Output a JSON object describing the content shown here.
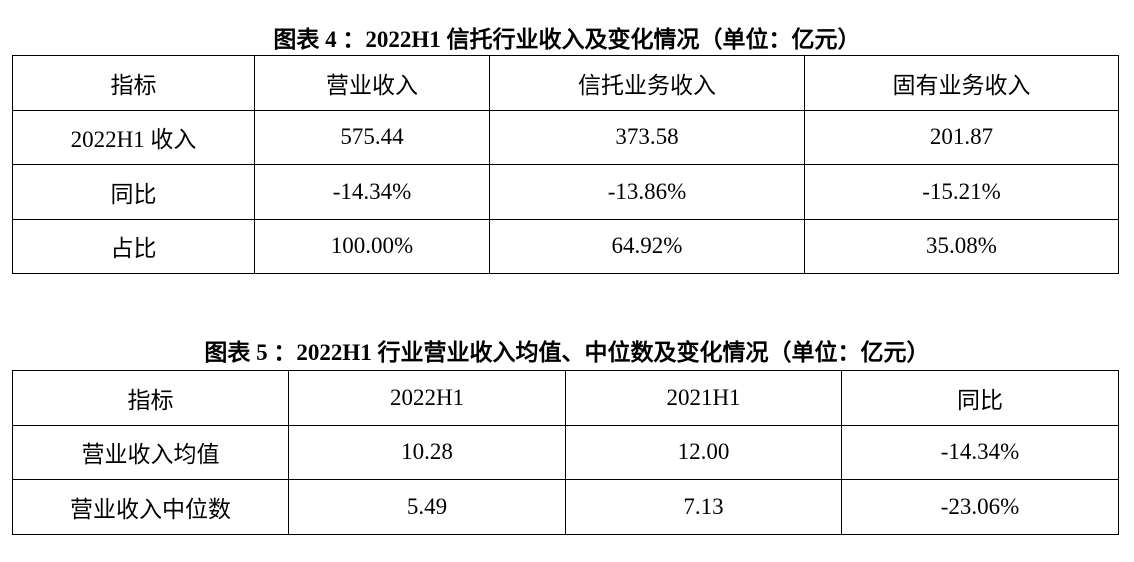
{
  "tables": [
    {
      "title": "图表 4 ：2022H1 信托行业收入及变化情况（单位：亿元）",
      "header": [
        "指标",
        "营业收入",
        "信托业务收入",
        "固有业务收入"
      ],
      "rows": [
        [
          "2022H1 收入",
          "575.44",
          "373.58",
          "201.87"
        ],
        [
          "同比",
          "-14.34%",
          "-13.86%",
          "-15.21%"
        ],
        [
          "占比",
          "100.00%",
          "64.92%",
          "35.08%"
        ]
      ]
    },
    {
      "title": "图表 5 ：2022H1 行业营业收入均值、中位数及变化情况（单位：亿元）",
      "header": [
        "指标",
        "2022H1",
        "2021H1",
        "同比"
      ],
      "rows": [
        [
          "营业收入均值",
          "10.28",
          "12.00",
          "-14.34%"
        ],
        [
          "营业收入中位数",
          "5.49",
          "7.13",
          "-23.06%"
        ]
      ]
    }
  ]
}
